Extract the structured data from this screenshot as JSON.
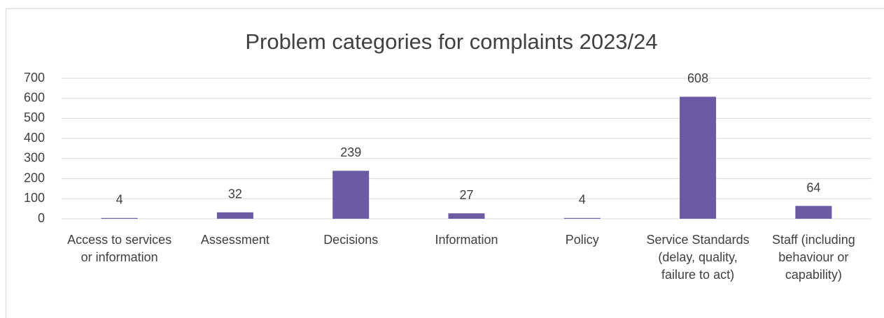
{
  "chart_data": {
    "type": "bar",
    "title": "Problem categories for complaints 2023/24",
    "categories": [
      "Access to services or information",
      "Assessment",
      "Decisions",
      "Information",
      "Policy",
      "Service Standards (delay, quality, failure to act)",
      "Staff (including behaviour or capability)"
    ],
    "values": [
      4,
      32,
      239,
      27,
      4,
      608,
      64
    ],
    "color": "#6b5ba5",
    "ylim": [
      0,
      700
    ],
    "yticks": [
      0,
      100,
      200,
      300,
      400,
      500,
      600,
      700
    ],
    "grid": true
  }
}
